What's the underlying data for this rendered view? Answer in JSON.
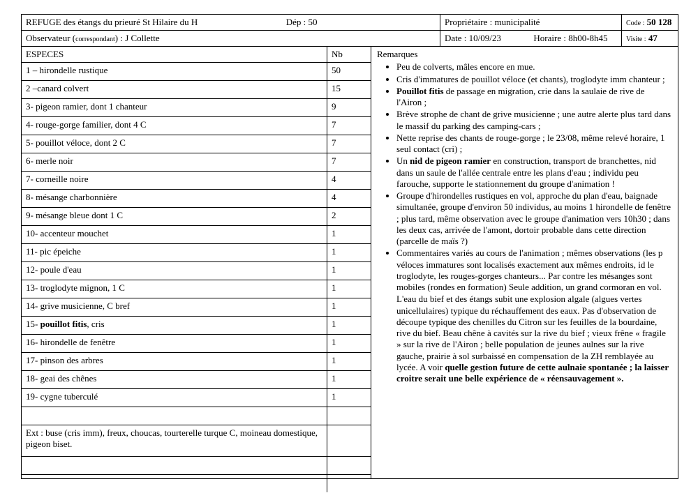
{
  "header": {
    "refuge_line": "REFUGE des étangs du prieuré St Hilaire du H",
    "dep_label": "Dép : 50",
    "proprietaire": "Propriétaire : municipalité",
    "code_label": "Code :",
    "code_value": "50 128",
    "observateur_prefix": "Observateur (",
    "observateur_small": "correspondant",
    "observateur_suffix": ") : J Collette",
    "date": "Date : 10/09/23",
    "horaire": "Horaire : 8h00-8h45",
    "visite_label": "Visite :",
    "visite_value": "47"
  },
  "species": {
    "col_especes": "ESPECES",
    "col_nb": "Nb",
    "rows": [
      {
        "name": "1 – hirondelle rustique",
        "nb": "50"
      },
      {
        "name": "2 –canard colvert",
        "nb": "15"
      },
      {
        "name": "3- pigeon ramier, dont 1 chanteur",
        "nb": "9"
      },
      {
        "name": "4-  rouge-gorge familier, dont 4 C",
        "nb": "7"
      },
      {
        "name": "5- pouillot véloce, dont 2 C",
        "nb": "7"
      },
      {
        "name": "6-  merle noir",
        "nb": "7"
      },
      {
        "name": "7-  corneille noire",
        "nb": "4"
      },
      {
        "name": "8-  mésange charbonnière",
        "nb": "4"
      },
      {
        "name": "9-  mésange bleue dont 1 C",
        "nb": "2"
      },
      {
        "name": "10-  accenteur mouchet",
        "nb": "1"
      },
      {
        "name": "11-  pic épeiche",
        "nb": "1"
      },
      {
        "name": "12-  poule d'eau",
        "nb": "1"
      },
      {
        "name": "13-   troglodyte mignon, 1 C",
        "nb": "1"
      },
      {
        "name": "14-  grive musicienne, C bref",
        "nb": "1"
      },
      {
        "name_html": "15-  <b>pouillot fitis</b>, cris",
        "nb": "1"
      },
      {
        "name": "16-  hirondelle de fenêtre",
        "nb": "1"
      },
      {
        "name": "17-  pinson des arbres",
        "nb": "1"
      },
      {
        "name": "18- geai des chênes",
        "nb": "1"
      },
      {
        "name": "19-  cygne tuberculé",
        "nb": "1"
      },
      {
        "name": "",
        "nb": ""
      },
      {
        "name": "Ext : buse (cris imm), freux, choucas, tourterelle turque C, moineau domestique, pigeon biset.",
        "nb": "",
        "tall": true
      },
      {
        "name": "",
        "nb": ""
      },
      {
        "name": "",
        "nb": ""
      }
    ]
  },
  "remarks": {
    "title": "Remarques",
    "items": [
      {
        "html": "Peu de colverts, mâles encore en mue."
      },
      {
        "html": "Cris d'immatures de pouillot véloce (et chants), troglodyte imm chanteur ;"
      },
      {
        "html": "<b>Pouillot fitis</b> de passage en migration, crie dans la saulaie de rive de l'Airon ;"
      },
      {
        "html": "Brève strophe de chant de grive musicienne ; une autre alerte plus tard dans le massif du parking des camping-cars ;"
      },
      {
        "html": "Nette reprise des chants de rouge-gorge ; le 23/08, même relevé horaire, 1 seul contact (cri) ;"
      },
      {
        "html": "Un <b>nid de pigeon ramier</b> en construction, transport de branchettes, nid dans un saule de l'allée centrale entre les plans d'eau ; individu peu farouche, supporte le stationnement du groupe d'animation !"
      },
      {
        "html": "Groupe d'hirondelles rustiques en vol, approche du plan d'eau, baignade simultanée, groupe d'environ 50 individus, au moins 1 hirondelle de fenêtre ; plus tard, même observation avec le groupe d'animation vers 10h30 ; dans les deux cas, arrivée de l'amont, dortoir probable dans cette direction (parcelle de maïs ?)"
      },
      {
        "html": "Commentaires variés au cours de l'animation ; mêmes observations (les p véloces immatures sont localisés exactement aux mêmes endroits, id le troglodyte, les rouges-gorges chanteurs... Par contre les mésanges sont mobiles (rondes en formation) Seule addition, un grand cormoran en vol."
      }
    ],
    "tail_html": "L'eau du bief et des étangs subit une explosion algale (algues vertes unicellulaires) typique du réchauffement des eaux. Pas d'observation de découpe typique des chenilles du Citron sur les feuilles de la bourdaine, rive du bief. Beau chêne à cavités sur la rive du bief ; vieux frêne « fragile » sur la rive de l'Airon ; belle population de jeunes aulnes sur la rive gauche, prairie à sol surbaissé en compensation de la ZH remblayée au lycée. A voir <b>quelle gestion future de cette aulnaie spontanée ; la laisser croitre serait une belle expérience de « réensauvagement ».</b>"
  }
}
